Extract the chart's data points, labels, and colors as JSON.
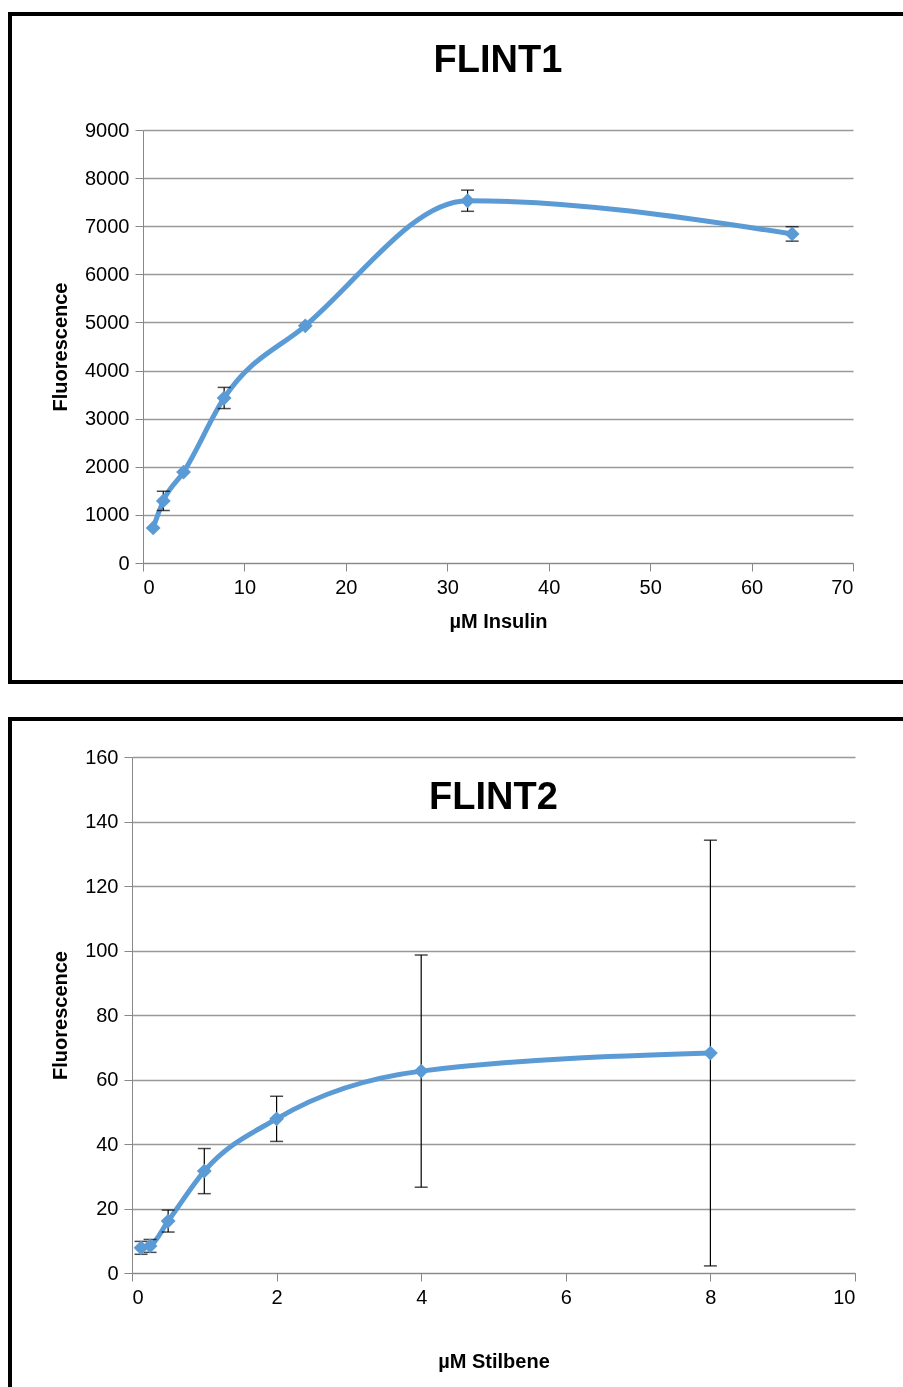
{
  "chart_data": [
    {
      "type": "line",
      "title": "FLINT1",
      "xlabel": "µM Insulin",
      "ylabel": "Fluorescence",
      "x": [
        1,
        2,
        4,
        8,
        16,
        32,
        64
      ],
      "series": [
        {
          "color": "#5b9bd5",
          "values": [
            730,
            1290,
            1890,
            3430,
            4930,
            7530,
            6840
          ],
          "errors": [
            null,
            200,
            null,
            220,
            null,
            220,
            150
          ]
        }
      ],
      "xlim": [
        0,
        70
      ],
      "xticks": [
        0,
        10,
        20,
        30,
        40,
        50,
        60,
        70
      ],
      "ylim": [
        0,
        9000
      ],
      "yticks": [
        0,
        1000,
        2000,
        3000,
        4000,
        5000,
        6000,
        7000,
        8000,
        9000
      ],
      "grid": "y",
      "marker": "diamond",
      "line_style": "solid"
    },
    {
      "type": "line",
      "title": "FLINT2",
      "xlabel": "µM Stilbene",
      "ylabel": "Fluorescence",
      "x": [
        0.125,
        0.25,
        0.5,
        1,
        2,
        4,
        8
      ],
      "series": [
        {
          "color": "#5b9bd5",
          "values": [
            7.8,
            8.4,
            16.1,
            31.6,
            47.8,
            62.6,
            68.2
          ],
          "errors": [
            2,
            2,
            3.4,
            7,
            7,
            36,
            66
          ]
        }
      ],
      "xlim": [
        0,
        10
      ],
      "xticks": [
        0,
        2,
        4,
        6,
        8,
        10
      ],
      "ylim": [
        0,
        160
      ],
      "yticks": [
        0,
        20,
        40,
        60,
        80,
        100,
        120,
        140,
        160
      ],
      "grid": "y",
      "marker": "diamond",
      "line_style": "solid"
    }
  ]
}
